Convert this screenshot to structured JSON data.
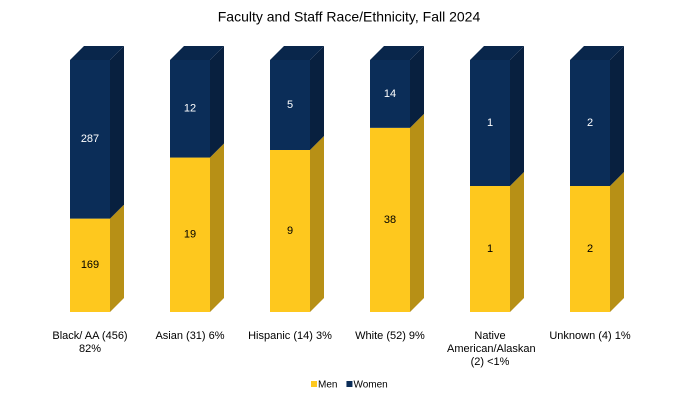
{
  "chart_data": {
    "type": "bar",
    "stacking": "percent",
    "title": "Faculty and Staff Race/Ethnicity, Fall 2024",
    "categories": [
      "Black/ AA (456) 82%",
      "Asian (31) 6%",
      "Hispanic (14) 3%",
      "White (52) 9%",
      "Native American/Alaskan (2) <1%",
      "Unknown (4) 1%"
    ],
    "series": [
      {
        "name": "Men",
        "color": "#fec81e",
        "values": [
          169,
          19,
          9,
          38,
          1,
          2
        ]
      },
      {
        "name": "Women",
        "color": "#0b2d58",
        "values": [
          287,
          12,
          5,
          14,
          1,
          2
        ]
      }
    ],
    "legend": "bottom"
  }
}
